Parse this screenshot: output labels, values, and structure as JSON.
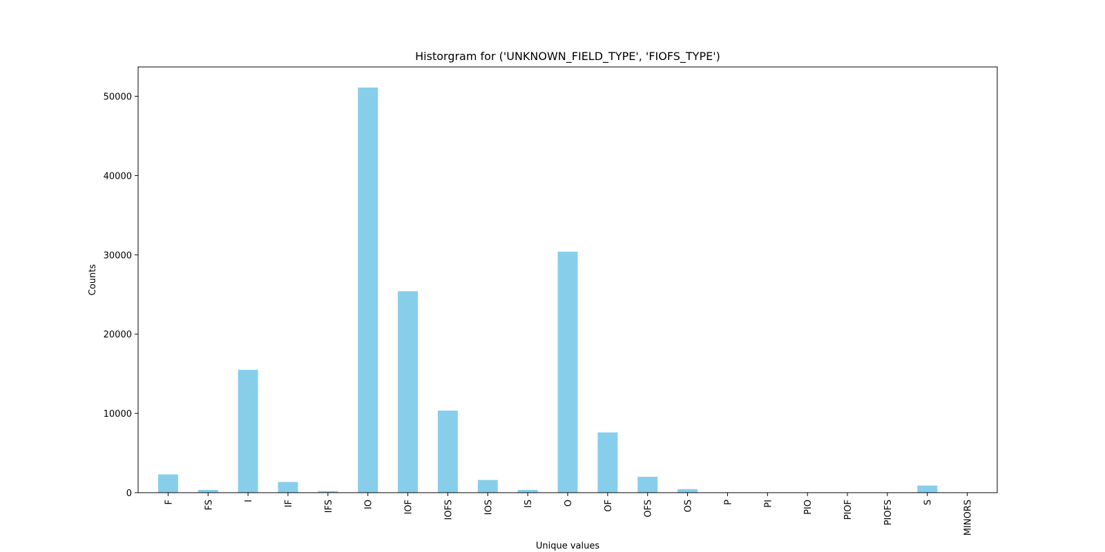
{
  "chart_data": {
    "type": "bar",
    "title": "Historgram for ('UNKNOWN_FIELD_TYPE', 'FIOFS_TYPE')",
    "xlabel": "Unique values",
    "ylabel": "Counts",
    "categories": [
      "F",
      "FS",
      "I",
      "IF",
      "IFS",
      "IO",
      "IOF",
      "IOFS",
      "IOS",
      "IS",
      "O",
      "OF",
      "OFS",
      "OS",
      "P",
      "PI",
      "PIO",
      "PIOF",
      "PIOFS",
      "S",
      "MINORS"
    ],
    "values": [
      2300,
      350,
      15500,
      1350,
      200,
      51100,
      25400,
      10350,
      1600,
      350,
      30400,
      7600,
      2000,
      450,
      0,
      0,
      0,
      0,
      0,
      900,
      0
    ],
    "ylim": [
      0,
      53700
    ],
    "yticks": [
      0,
      10000,
      20000,
      30000,
      40000,
      50000
    ],
    "bar_color": "#87ceeb",
    "grid": false,
    "legend": "none"
  }
}
